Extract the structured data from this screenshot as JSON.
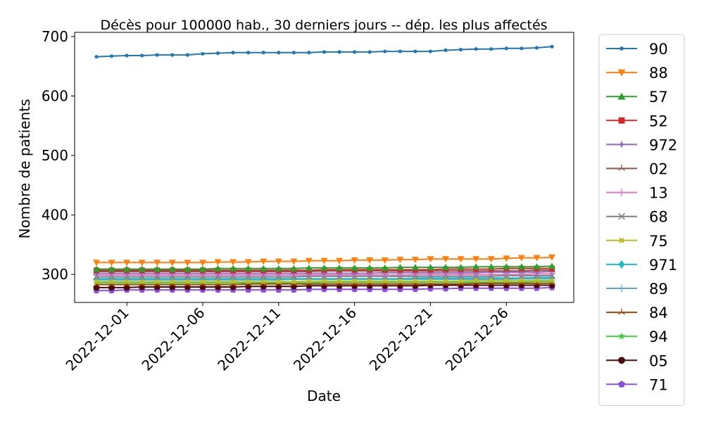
{
  "chart_data": {
    "type": "line",
    "title": "Décès pour 100000 hab., 30 derniers jours -- dép. les plus affectés",
    "xlabel": "Date",
    "ylabel": "Nombre de patients",
    "x": [
      "2022-11-29",
      "2022-11-30",
      "2022-12-01",
      "2022-12-02",
      "2022-12-03",
      "2022-12-04",
      "2022-12-05",
      "2022-12-06",
      "2022-12-07",
      "2022-12-08",
      "2022-12-09",
      "2022-12-10",
      "2022-12-11",
      "2022-12-12",
      "2022-12-13",
      "2022-12-14",
      "2022-12-15",
      "2022-12-16",
      "2022-12-17",
      "2022-12-18",
      "2022-12-19",
      "2022-12-20",
      "2022-12-21",
      "2022-12-22",
      "2022-12-23",
      "2022-12-24",
      "2022-12-25",
      "2022-12-26",
      "2022-12-27",
      "2022-12-28",
      "2022-12-29"
    ],
    "xticks": [
      "2022-12-01",
      "2022-12-06",
      "2022-12-11",
      "2022-12-16",
      "2022-12-21",
      "2022-12-26"
    ],
    "yticks": [
      300,
      400,
      500,
      600,
      700
    ],
    "ylim": [
      253,
      707
    ],
    "grid": false,
    "legend_position": "outside-right",
    "series": [
      {
        "name": "90",
        "color": "#1f77b4",
        "marker": "point",
        "values": [
          666,
          667,
          668,
          668,
          669,
          669,
          669,
          671,
          672,
          673,
          673,
          673,
          673,
          673,
          673,
          674,
          674,
          674,
          674,
          675,
          675,
          675,
          675,
          677,
          678,
          679,
          679,
          680,
          680,
          681,
          683
        ]
      },
      {
        "name": "88",
        "color": "#ff7f0e",
        "marker": "triangle_down",
        "values": [
          320,
          320,
          320,
          320,
          320,
          320,
          320,
          320,
          321,
          321,
          321,
          322,
          322,
          322,
          323,
          323,
          323,
          324,
          324,
          324,
          325,
          325,
          326,
          326,
          326,
          326,
          326,
          327,
          328,
          328,
          329
        ]
      },
      {
        "name": "57",
        "color": "#2ca02c",
        "marker": "triangle_up",
        "values": [
          309,
          309,
          309,
          309,
          309,
          309,
          309,
          309,
          310,
          310,
          310,
          310,
          310,
          310,
          311,
          311,
          311,
          311,
          311,
          311,
          312,
          312,
          312,
          312,
          312,
          313,
          313,
          313,
          313,
          313,
          314
        ]
      },
      {
        "name": "52",
        "color": "#d62728",
        "marker": "square",
        "values": [
          307,
          307,
          307,
          307,
          307,
          307,
          307,
          307,
          307,
          307,
          307,
          307,
          307,
          307,
          307,
          308,
          308,
          308,
          308,
          308,
          308,
          308,
          308,
          309,
          309,
          309,
          309,
          310,
          310,
          310,
          310
        ]
      },
      {
        "name": "972",
        "color": "#9467bd",
        "marker": "plus_filled",
        "values": [
          302,
          302,
          302,
          302,
          302,
          302,
          302,
          302,
          302,
          302,
          302,
          302,
          302,
          302,
          302,
          302,
          302,
          302,
          302,
          303,
          303,
          303,
          303,
          303,
          303,
          303,
          304,
          304,
          304,
          304,
          305
        ]
      },
      {
        "name": "02",
        "color": "#8c564b",
        "marker": "tri_up",
        "values": [
          305,
          305,
          305,
          305,
          305,
          305,
          305,
          305,
          305,
          305,
          305,
          305,
          305,
          305,
          305,
          306,
          306,
          306,
          306,
          306,
          306,
          306,
          306,
          306,
          306,
          306,
          306,
          306,
          306,
          307,
          307
        ]
      },
      {
        "name": "13",
        "color": "#e377c2",
        "marker": "plus",
        "values": [
          299,
          299,
          299,
          299,
          299,
          299,
          299,
          299,
          299,
          299,
          299,
          299,
          299,
          299,
          299,
          299,
          299,
          299,
          299,
          299,
          299,
          300,
          300,
          300,
          300,
          300,
          300,
          300,
          300,
          301,
          301
        ]
      },
      {
        "name": "68",
        "color": "#7f7f7f",
        "marker": "x",
        "values": [
          296,
          296,
          296,
          296,
          296,
          296,
          296,
          296,
          296,
          296,
          296,
          296,
          296,
          296,
          297,
          297,
          297,
          297,
          297,
          297,
          297,
          297,
          297,
          297,
          297,
          297,
          297,
          298,
          298,
          298,
          298
        ]
      },
      {
        "name": "75",
        "color": "#bcbd22",
        "marker": "x_filled",
        "values": [
          288,
          288,
          288,
          288,
          288,
          288,
          288,
          288,
          288,
          288,
          288,
          288,
          288,
          288,
          289,
          289,
          289,
          289,
          289,
          289,
          289,
          289,
          289,
          289,
          289,
          290,
          290,
          290,
          290,
          290,
          290
        ]
      },
      {
        "name": "971",
        "color": "#17becf",
        "marker": "diamond",
        "values": [
          293,
          293,
          293,
          293,
          293,
          293,
          293,
          293,
          293,
          293,
          293,
          293,
          293,
          293,
          293,
          293,
          293,
          293,
          293,
          293,
          293,
          294,
          294,
          294,
          294,
          294,
          294,
          294,
          294,
          295,
          295
        ]
      },
      {
        "name": "89",
        "color": "#5aa5dc",
        "marker": "plus",
        "values": [
          291,
          291,
          291,
          291,
          291,
          291,
          291,
          291,
          291,
          291,
          291,
          291,
          291,
          292,
          292,
          292,
          292,
          292,
          292,
          292,
          292,
          292,
          292,
          292,
          292,
          292,
          292,
          292,
          293,
          293,
          293
        ]
      },
      {
        "name": "84",
        "color": "#a0460a",
        "marker": "tri_up",
        "values": [
          283,
          283,
          283,
          283,
          283,
          283,
          283,
          283,
          283,
          283,
          284,
          284,
          284,
          284,
          284,
          284,
          284,
          284,
          284,
          284,
          284,
          284,
          284,
          284,
          284,
          285,
          285,
          285,
          285,
          285,
          285
        ]
      },
      {
        "name": "94",
        "color": "#3ecf3e",
        "marker": "star",
        "values": [
          286,
          286,
          286,
          286,
          286,
          286,
          286,
          286,
          286,
          286,
          286,
          286,
          286,
          286,
          286,
          287,
          287,
          287,
          287,
          287,
          287,
          287,
          287,
          287,
          287,
          287,
          287,
          287,
          287,
          288,
          288
        ]
      },
      {
        "name": "05",
        "color": "#4a0a0a",
        "marker": "circle",
        "values": [
          278,
          278,
          278,
          279,
          279,
          279,
          279,
          279,
          279,
          279,
          280,
          280,
          280,
          280,
          281,
          281,
          281,
          281,
          281,
          281,
          281,
          281,
          282,
          282,
          282,
          282,
          282,
          282,
          282,
          282,
          282
        ]
      },
      {
        "name": "71",
        "color": "#8a4fe0",
        "marker": "pentagon",
        "values": [
          273,
          273,
          274,
          274,
          274,
          274,
          274,
          274,
          274,
          274,
          274,
          274,
          274,
          274,
          275,
          275,
          275,
          275,
          275,
          275,
          275,
          275,
          276,
          276,
          277,
          277,
          277,
          277,
          277,
          277,
          278
        ]
      }
    ]
  }
}
